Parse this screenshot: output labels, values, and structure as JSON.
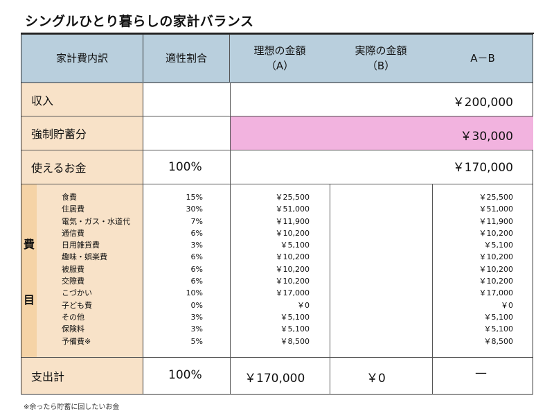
{
  "title": "シングルひとり暮らしの家計バランス",
  "header": {
    "col1": "家計費内訳",
    "col2": "適性割合",
    "col3_line1": "理想の金額",
    "col3_line2": "（A）",
    "col4_line1": "実際の金額",
    "col4_line2": "（B）",
    "col5": "A－B"
  },
  "income": {
    "label": "収入",
    "value": "￥200,000"
  },
  "savings": {
    "label": "強制貯蓄分",
    "value": "￥30,000",
    "highlight_color": "#f2b3df"
  },
  "usable": {
    "label": "使えるお金",
    "ratio": "100%",
    "value": "￥170,000"
  },
  "expenses": {
    "side_label_top": "費",
    "side_label_bottom": "目",
    "items": [
      {
        "name": "食費",
        "ratio": "15%",
        "ideal": "￥25,500",
        "actual": "",
        "diff": "￥25,500"
      },
      {
        "name": "住居費",
        "ratio": "30%",
        "ideal": "￥51,000",
        "actual": "",
        "diff": "￥51,000"
      },
      {
        "name": "電気・ガス・水道代",
        "ratio": "7%",
        "ideal": "￥11,900",
        "actual": "",
        "diff": "￥11,900"
      },
      {
        "name": "通信費",
        "ratio": "6%",
        "ideal": "￥10,200",
        "actual": "",
        "diff": "￥10,200"
      },
      {
        "name": "日用雑貨費",
        "ratio": "3%",
        "ideal": "￥5,100",
        "actual": "",
        "diff": "￥5,100"
      },
      {
        "name": "趣味・娯楽費",
        "ratio": "6%",
        "ideal": "￥10,200",
        "actual": "",
        "diff": "￥10,200"
      },
      {
        "name": "被服費",
        "ratio": "6%",
        "ideal": "￥10,200",
        "actual": "",
        "diff": "￥10,200"
      },
      {
        "name": "交際費",
        "ratio": "6%",
        "ideal": "￥10,200",
        "actual": "",
        "diff": "￥10,200"
      },
      {
        "name": "こづかい",
        "ratio": "10%",
        "ideal": "￥17,000",
        "actual": "",
        "diff": "￥17,000"
      },
      {
        "name": "子ども費",
        "ratio": "0%",
        "ideal": "￥0",
        "actual": "",
        "diff": "￥0"
      },
      {
        "name": "その他",
        "ratio": "3%",
        "ideal": "￥5,100",
        "actual": "",
        "diff": "￥5,100"
      },
      {
        "name": "保険料",
        "ratio": "3%",
        "ideal": "￥5,100",
        "actual": "",
        "diff": "￥5,100"
      },
      {
        "name": "予備費※",
        "ratio": "5%",
        "ideal": "￥8,500",
        "actual": "",
        "diff": "￥8,500"
      }
    ]
  },
  "total": {
    "label": "支出計",
    "ratio": "100%",
    "ideal": "￥170,000",
    "actual": "￥0",
    "diff": "—"
  },
  "footnote": "※余ったら貯蓄に回したいお金",
  "colors": {
    "header_bg": "#b9cfdd",
    "label_bg": "#f8e2c8",
    "side_label_bg": "#f5d3a6"
  }
}
